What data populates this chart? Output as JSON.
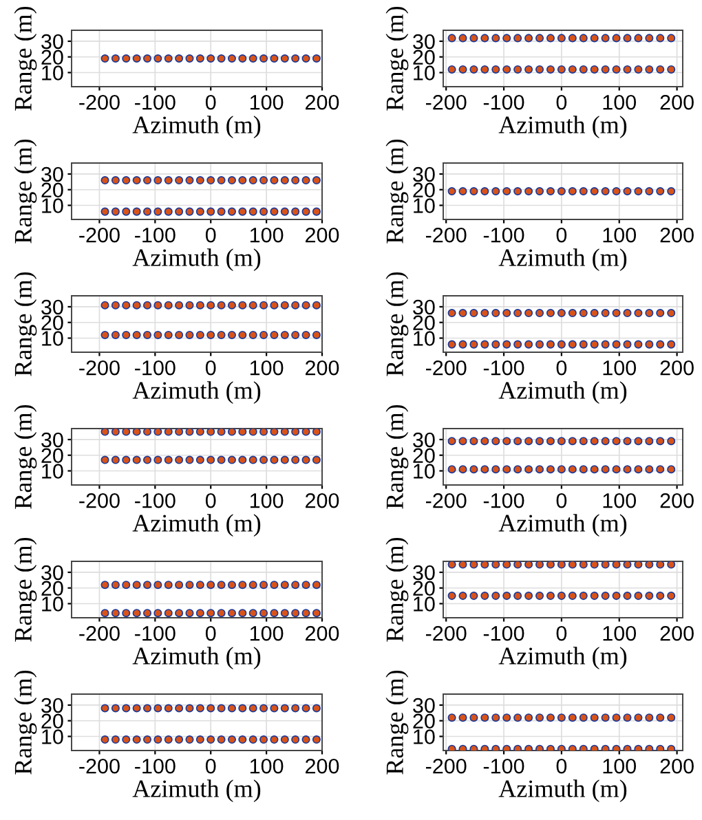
{
  "chart_data": [
    {
      "type": "scatter",
      "xlabel": "Azimuth (m)",
      "ylabel": "Range (m)",
      "x": [
        -190,
        -171,
        -152,
        -133,
        -114,
        -95,
        -76,
        -57,
        -38,
        -19,
        0,
        19,
        38,
        57,
        76,
        95,
        114,
        133,
        152,
        171,
        190
      ],
      "series": [
        {
          "color": "#d95319",
          "values": [
            19,
            19,
            19,
            19,
            19,
            19,
            19,
            19,
            19,
            19,
            19,
            19,
            19,
            19,
            19,
            19,
            19,
            19,
            19,
            19,
            19
          ]
        }
      ],
      "xlim": [
        -250,
        200
      ],
      "ylim": [
        1,
        37
      ],
      "xticks": [
        -200,
        -100,
        0,
        100,
        200
      ],
      "yticks": [
        10,
        20,
        30
      ],
      "grid": true,
      "marker": "circle"
    },
    {
      "type": "scatter",
      "xlabel": "Azimuth (m)",
      "ylabel": "Range (m)",
      "x": [
        -190,
        -171,
        -152,
        -133,
        -114,
        -95,
        -76,
        -57,
        -38,
        -19,
        0,
        19,
        38,
        57,
        76,
        95,
        114,
        133,
        152,
        171,
        190
      ],
      "series": [
        {
          "color": "#d95319",
          "values": [
            32,
            32,
            32,
            32,
            32,
            32,
            32,
            32,
            32,
            32,
            32,
            32,
            32,
            32,
            32,
            32,
            32,
            32,
            32,
            32,
            32
          ]
        },
        {
          "color": "#d95319",
          "values": [
            12,
            12,
            12,
            12,
            12,
            12,
            12,
            12,
            12,
            12,
            12,
            12,
            12,
            12,
            12,
            12,
            12,
            12,
            12,
            12,
            12
          ]
        }
      ],
      "xlim": [
        -205,
        210
      ],
      "ylim": [
        1,
        37
      ],
      "xticks": [
        -200,
        -100,
        0,
        100,
        200
      ],
      "yticks": [
        10,
        20,
        30
      ],
      "grid": true,
      "marker": "circle"
    },
    {
      "type": "scatter",
      "xlabel": "Azimuth (m)",
      "ylabel": "Range (m)",
      "x": [
        -190,
        -171,
        -152,
        -133,
        -114,
        -95,
        -76,
        -57,
        -38,
        -19,
        0,
        19,
        38,
        57,
        76,
        95,
        114,
        133,
        152,
        171,
        190
      ],
      "series": [
        {
          "color": "#d95319",
          "values": [
            26,
            26,
            26,
            26,
            26,
            26,
            26,
            26,
            26,
            26,
            26,
            26,
            26,
            26,
            26,
            26,
            26,
            26,
            26,
            26,
            26
          ]
        },
        {
          "color": "#d95319",
          "values": [
            6,
            6,
            6,
            6,
            6,
            6,
            6,
            6,
            6,
            6,
            6,
            6,
            6,
            6,
            6,
            6,
            6,
            6,
            6,
            6,
            6
          ]
        }
      ],
      "xlim": [
        -250,
        200
      ],
      "ylim": [
        1,
        37
      ],
      "xticks": [
        -200,
        -100,
        0,
        100,
        200
      ],
      "yticks": [
        10,
        20,
        30
      ],
      "grid": true,
      "marker": "circle"
    },
    {
      "type": "scatter",
      "xlabel": "Azimuth (m)",
      "ylabel": "Range (m)",
      "x": [
        -190,
        -171,
        -152,
        -133,
        -114,
        -95,
        -76,
        -57,
        -38,
        -19,
        0,
        19,
        38,
        57,
        76,
        95,
        114,
        133,
        152,
        171,
        190
      ],
      "series": [
        {
          "color": "#d95319",
          "values": [
            19,
            19,
            19,
            19,
            19,
            19,
            19,
            19,
            19,
            19,
            19,
            19,
            19,
            19,
            19,
            19,
            19,
            19,
            19,
            19,
            19
          ]
        }
      ],
      "xlim": [
        -205,
        210
      ],
      "ylim": [
        1,
        37
      ],
      "xticks": [
        -200,
        -100,
        0,
        100,
        200
      ],
      "yticks": [
        10,
        20,
        30
      ],
      "grid": true,
      "marker": "circle"
    },
    {
      "type": "scatter",
      "xlabel": "Azimuth (m)",
      "ylabel": "Range (m)",
      "x": [
        -190,
        -171,
        -152,
        -133,
        -114,
        -95,
        -76,
        -57,
        -38,
        -19,
        0,
        19,
        38,
        57,
        76,
        95,
        114,
        133,
        152,
        171,
        190
      ],
      "series": [
        {
          "color": "#d95319",
          "values": [
            31,
            31,
            31,
            31,
            31,
            31,
            31,
            31,
            31,
            31,
            31,
            31,
            31,
            31,
            31,
            31,
            31,
            31,
            31,
            31,
            31
          ]
        },
        {
          "color": "#d95319",
          "values": [
            12,
            12,
            12,
            12,
            12,
            12,
            12,
            12,
            12,
            12,
            12,
            12,
            12,
            12,
            12,
            12,
            12,
            12,
            12,
            12,
            12
          ]
        }
      ],
      "xlim": [
        -250,
        200
      ],
      "ylim": [
        1,
        37
      ],
      "xticks": [
        -200,
        -100,
        0,
        100,
        200
      ],
      "yticks": [
        10,
        20,
        30
      ],
      "grid": true,
      "marker": "circle"
    },
    {
      "type": "scatter",
      "xlabel": "Azimuth (m)",
      "ylabel": "Range (m)",
      "x": [
        -190,
        -171,
        -152,
        -133,
        -114,
        -95,
        -76,
        -57,
        -38,
        -19,
        0,
        19,
        38,
        57,
        76,
        95,
        114,
        133,
        152,
        171,
        190
      ],
      "series": [
        {
          "color": "#d95319",
          "values": [
            26,
            26,
            26,
            26,
            26,
            26,
            26,
            26,
            26,
            26,
            26,
            26,
            26,
            26,
            26,
            26,
            26,
            26,
            26,
            26,
            26
          ]
        },
        {
          "color": "#d95319",
          "values": [
            6,
            6,
            6,
            6,
            6,
            6,
            6,
            6,
            6,
            6,
            6,
            6,
            6,
            6,
            6,
            6,
            6,
            6,
            6,
            6,
            6
          ]
        }
      ],
      "xlim": [
        -205,
        210
      ],
      "ylim": [
        1,
        37
      ],
      "xticks": [
        -200,
        -100,
        0,
        100,
        200
      ],
      "yticks": [
        10,
        20,
        30
      ],
      "grid": true,
      "marker": "circle"
    },
    {
      "type": "scatter",
      "xlabel": "Azimuth (m)",
      "ylabel": "Range (m)",
      "x": [
        -190,
        -171,
        -152,
        -133,
        -114,
        -95,
        -76,
        -57,
        -38,
        -19,
        0,
        19,
        38,
        57,
        76,
        95,
        114,
        133,
        152,
        171,
        190
      ],
      "series": [
        {
          "color": "#d95319",
          "values": [
            35,
            35,
            35,
            35,
            35,
            35,
            35,
            35,
            35,
            35,
            35,
            35,
            35,
            35,
            35,
            35,
            35,
            35,
            35,
            35,
            35
          ]
        },
        {
          "color": "#d95319",
          "values": [
            17,
            17,
            17,
            17,
            17,
            17,
            17,
            17,
            17,
            17,
            17,
            17,
            17,
            17,
            17,
            17,
            17,
            17,
            17,
            17,
            17
          ]
        }
      ],
      "xlim": [
        -250,
        200
      ],
      "ylim": [
        1,
        37
      ],
      "xticks": [
        -200,
        -100,
        0,
        100,
        200
      ],
      "yticks": [
        10,
        20,
        30
      ],
      "grid": true,
      "marker": "circle"
    },
    {
      "type": "scatter",
      "xlabel": "Azimuth (m)",
      "ylabel": "Range (m)",
      "x": [
        -190,
        -171,
        -152,
        -133,
        -114,
        -95,
        -76,
        -57,
        -38,
        -19,
        0,
        19,
        38,
        57,
        76,
        95,
        114,
        133,
        152,
        171,
        190
      ],
      "series": [
        {
          "color": "#d95319",
          "values": [
            29,
            29,
            29,
            29,
            29,
            29,
            29,
            29,
            29,
            29,
            29,
            29,
            29,
            29,
            29,
            29,
            29,
            29,
            29,
            29,
            29
          ]
        },
        {
          "color": "#d95319",
          "values": [
            11,
            11,
            11,
            11,
            11,
            11,
            11,
            11,
            11,
            11,
            11,
            11,
            11,
            11,
            11,
            11,
            11,
            11,
            11,
            11,
            11
          ]
        }
      ],
      "xlim": [
        -205,
        210
      ],
      "ylim": [
        1,
        37
      ],
      "xticks": [
        -200,
        -100,
        0,
        100,
        200
      ],
      "yticks": [
        10,
        20,
        30
      ],
      "grid": true,
      "marker": "circle"
    },
    {
      "type": "scatter",
      "xlabel": "Azimuth (m)",
      "ylabel": "Range (m)",
      "x": [
        -190,
        -171,
        -152,
        -133,
        -114,
        -95,
        -76,
        -57,
        -38,
        -19,
        0,
        19,
        38,
        57,
        76,
        95,
        114,
        133,
        152,
        171,
        190
      ],
      "series": [
        {
          "color": "#d95319",
          "values": [
            22,
            22,
            22,
            22,
            22,
            22,
            22,
            22,
            22,
            22,
            22,
            22,
            22,
            22,
            22,
            22,
            22,
            22,
            22,
            22,
            22
          ]
        },
        {
          "color": "#d95319",
          "values": [
            4,
            4,
            4,
            4,
            4,
            4,
            4,
            4,
            4,
            4,
            4,
            4,
            4,
            4,
            4,
            4,
            4,
            4,
            4,
            4,
            4
          ]
        }
      ],
      "xlim": [
        -250,
        200
      ],
      "ylim": [
        1,
        37
      ],
      "xticks": [
        -200,
        -100,
        0,
        100,
        200
      ],
      "yticks": [
        10,
        20,
        30
      ],
      "grid": true,
      "marker": "circle"
    },
    {
      "type": "scatter",
      "xlabel": "Azimuth (m)",
      "ylabel": "Range (m)",
      "x": [
        -190,
        -171,
        -152,
        -133,
        -114,
        -95,
        -76,
        -57,
        -38,
        -19,
        0,
        19,
        38,
        57,
        76,
        95,
        114,
        133,
        152,
        171,
        190
      ],
      "series": [
        {
          "color": "#d95319",
          "values": [
            35,
            35,
            35,
            35,
            35,
            35,
            35,
            35,
            35,
            35,
            35,
            35,
            35,
            35,
            35,
            35,
            35,
            35,
            35,
            35,
            35
          ]
        },
        {
          "color": "#d95319",
          "values": [
            15,
            15,
            15,
            15,
            15,
            15,
            15,
            15,
            15,
            15,
            15,
            15,
            15,
            15,
            15,
            15,
            15,
            15,
            15,
            15,
            15
          ]
        }
      ],
      "xlim": [
        -205,
        210
      ],
      "ylim": [
        1,
        37
      ],
      "xticks": [
        -200,
        -100,
        0,
        100,
        200
      ],
      "yticks": [
        10,
        20,
        30
      ],
      "grid": true,
      "marker": "circle"
    },
    {
      "type": "scatter",
      "xlabel": "Azimuth (m)",
      "ylabel": "Range (m)",
      "x": [
        -190,
        -171,
        -152,
        -133,
        -114,
        -95,
        -76,
        -57,
        -38,
        -19,
        0,
        19,
        38,
        57,
        76,
        95,
        114,
        133,
        152,
        171,
        190
      ],
      "series": [
        {
          "color": "#d95319",
          "values": [
            28,
            28,
            28,
            28,
            28,
            28,
            28,
            28,
            28,
            28,
            28,
            28,
            28,
            28,
            28,
            28,
            28,
            28,
            28,
            28,
            28
          ]
        },
        {
          "color": "#d95319",
          "values": [
            8,
            8,
            8,
            8,
            8,
            8,
            8,
            8,
            8,
            8,
            8,
            8,
            8,
            8,
            8,
            8,
            8,
            8,
            8,
            8,
            8
          ]
        }
      ],
      "xlim": [
        -250,
        200
      ],
      "ylim": [
        1,
        37
      ],
      "xticks": [
        -200,
        -100,
        0,
        100,
        200
      ],
      "yticks": [
        10,
        20,
        30
      ],
      "grid": true,
      "marker": "circle"
    },
    {
      "type": "scatter",
      "xlabel": "Azimuth (m)",
      "ylabel": "Range (m)",
      "x": [
        -190,
        -171,
        -152,
        -133,
        -114,
        -95,
        -76,
        -57,
        -38,
        -19,
        0,
        19,
        38,
        57,
        76,
        95,
        114,
        133,
        152,
        171,
        190
      ],
      "series": [
        {
          "color": "#d95319",
          "values": [
            22,
            22,
            22,
            22,
            22,
            22,
            22,
            22,
            22,
            22,
            22,
            22,
            22,
            22,
            22,
            22,
            22,
            22,
            22,
            22,
            22
          ]
        },
        {
          "color": "#d95319",
          "values": [
            2,
            2,
            2,
            2,
            2,
            2,
            2,
            2,
            2,
            2,
            2,
            2,
            2,
            2,
            2,
            2,
            2,
            2,
            2,
            2,
            2
          ]
        }
      ],
      "xlim": [
        -205,
        210
      ],
      "ylim": [
        1,
        37
      ],
      "xticks": [
        -200,
        -100,
        0,
        100,
        200
      ],
      "yticks": [
        10,
        20,
        30
      ],
      "grid": true,
      "marker": "circle"
    }
  ]
}
